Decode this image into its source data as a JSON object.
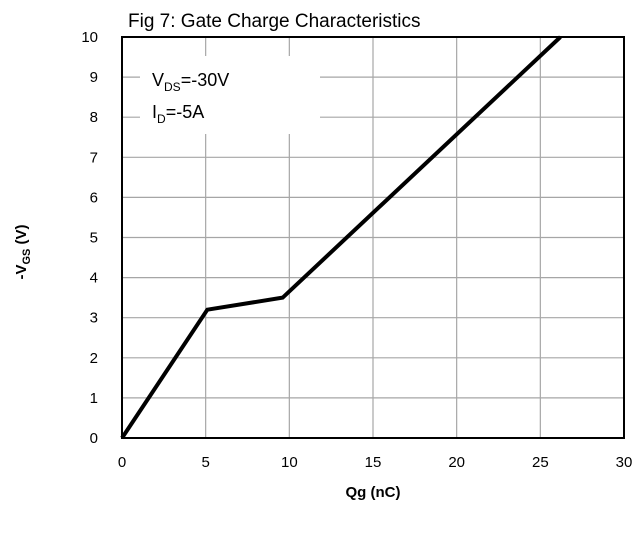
{
  "chart_data": {
    "type": "line",
    "title": "Fig 7: Gate Charge  Characteristics",
    "xlabel": "Qg (nC)",
    "ylabel": {
      "prefix": "-V",
      "sub": "GS",
      "suffix": " (V)"
    },
    "xlim": [
      0,
      30
    ],
    "ylim": [
      0,
      10
    ],
    "xticks": [
      0,
      5,
      10,
      15,
      20,
      25,
      30
    ],
    "yticks": [
      0,
      1,
      2,
      3,
      4,
      5,
      6,
      7,
      8,
      9,
      10
    ],
    "grid": true,
    "series": [
      {
        "x": [
          0,
          5.1,
          9.6,
          26.2
        ],
        "y": [
          0,
          3.2,
          3.5,
          10
        ],
        "color": "#000000"
      }
    ],
    "annotations": [
      {
        "main": "V",
        "sub": "DS",
        "rest": "=-30V"
      },
      {
        "main": "I",
        "sub": "D",
        "rest": "=-5A"
      }
    ]
  }
}
